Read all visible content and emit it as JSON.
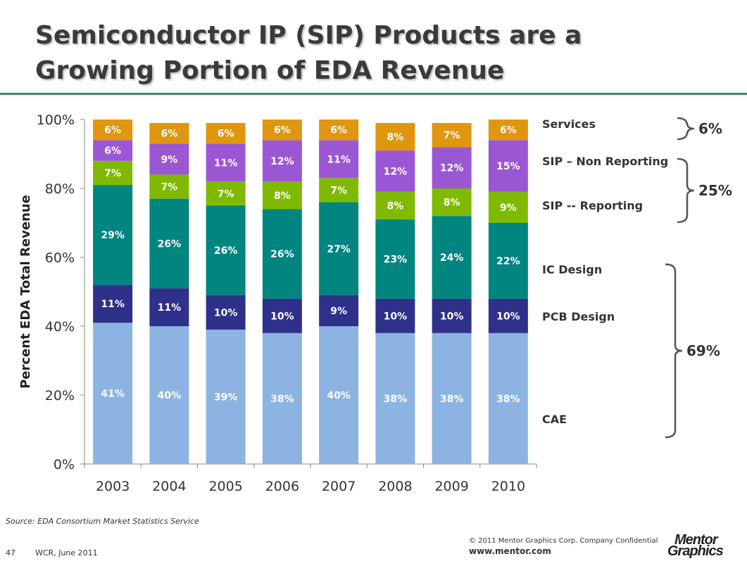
{
  "slide": {
    "title_line1": "Semiconductor IP (SIP) Products are a",
    "title_line2": "Growing Portion of EDA Revenue",
    "source": "Source:  EDA Consortium Market Statistics Service",
    "page_number": "47",
    "footer_note": "WCR, June 2011",
    "copyright": "© 2011 Mentor Graphics Corp. Company Confidential",
    "website": "www.mentor.com",
    "logo_line1": "Mentor",
    "logo_line2": "Graphics"
  },
  "chart_data": {
    "type": "bar",
    "stacked": true,
    "ylabel": "Percent EDA Total Revenue",
    "ylim": [
      0,
      100
    ],
    "yticks": [
      "0%",
      "20%",
      "40%",
      "60%",
      "80%",
      "100%"
    ],
    "grid": false,
    "categories": [
      "2003",
      "2004",
      "2005",
      "2006",
      "2007",
      "2008",
      "2009",
      "2010"
    ],
    "series": [
      {
        "name": "CAE",
        "color": "#8db3e2",
        "values": [
          41,
          40,
          39,
          38,
          40,
          38,
          38,
          38
        ]
      },
      {
        "name": "PCB Design",
        "color": "#2e3089",
        "values": [
          11,
          11,
          10,
          10,
          9,
          10,
          10,
          10
        ]
      },
      {
        "name": "IC Design",
        "color": "#008580",
        "values": [
          29,
          26,
          26,
          26,
          27,
          23,
          24,
          22
        ]
      },
      {
        "name": "SIP -- Reporting",
        "color": "#7fba00",
        "values": [
          7,
          7,
          7,
          8,
          7,
          8,
          8,
          9
        ]
      },
      {
        "name": "SIP – Non Reporting",
        "color": "#9b57d3",
        "values": [
          6,
          9,
          11,
          12,
          11,
          12,
          12,
          15
        ]
      },
      {
        "name": "Services",
        "color": "#e0960e",
        "values": [
          6,
          6,
          6,
          6,
          6,
          8,
          7,
          6
        ]
      }
    ],
    "groups": [
      {
        "label": "6%",
        "members": [
          "Services"
        ]
      },
      {
        "label": "25%",
        "members": [
          "SIP – Non Reporting",
          "SIP -- Reporting"
        ]
      },
      {
        "label": "69%",
        "members": [
          "IC Design",
          "PCB Design",
          "CAE"
        ]
      }
    ]
  }
}
